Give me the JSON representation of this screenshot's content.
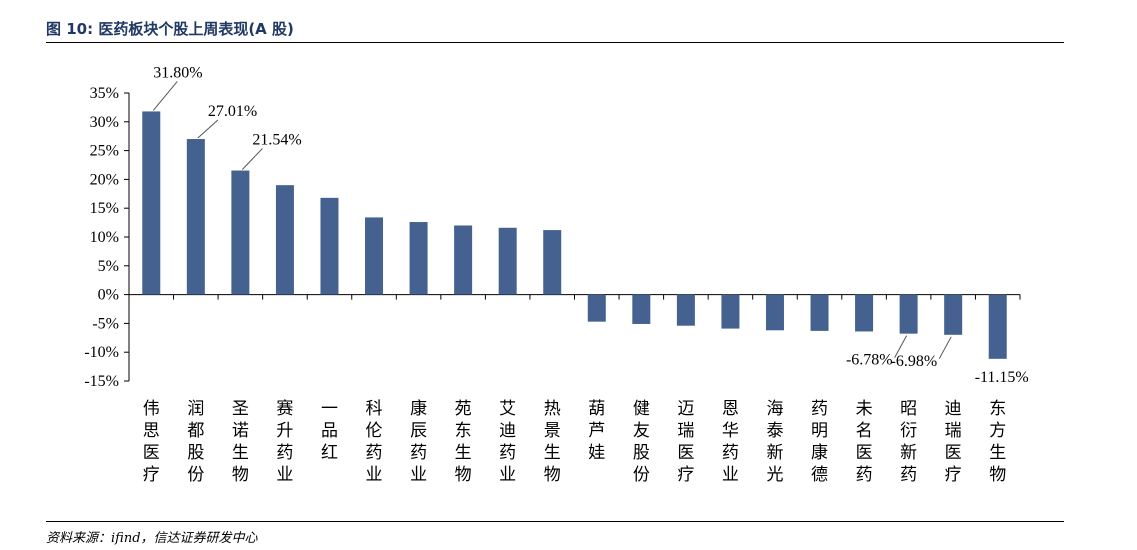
{
  "figure": {
    "title": "图 10: 医药板块个股上周表现(A 股)",
    "source": "资料来源：ifind，信达证券研发中心"
  },
  "chart_data": {
    "type": "bar",
    "title": "",
    "xlabel": "",
    "ylabel": "",
    "ylim": [
      -15,
      35
    ],
    "y_ticks": [
      35,
      30,
      25,
      20,
      15,
      10,
      5,
      0,
      -5,
      -10,
      -15
    ],
    "y_tick_labels": [
      "35%",
      "30%",
      "25%",
      "20%",
      "15%",
      "10%",
      "5%",
      "0%",
      "-5%",
      "-10%",
      "-15%"
    ],
    "categories": [
      "伟思医疗",
      "润都股份",
      "圣诺生物",
      "赛升药业",
      "一品红",
      "科伦药业",
      "康辰药业",
      "苑东生物",
      "艾迪药业",
      "热景生物",
      "葫芦娃",
      "健友股份",
      "迈瑞医疗",
      "恩华药业",
      "海泰新光",
      "药明康德",
      "未名医药",
      "昭衍新药",
      "迪瑞医疗",
      "东方生物"
    ],
    "values": [
      31.8,
      27.01,
      21.54,
      19.0,
      16.8,
      13.4,
      12.6,
      12.0,
      11.6,
      11.2,
      -4.7,
      -5.1,
      -5.4,
      -5.9,
      -6.2,
      -6.3,
      -6.4,
      -6.78,
      -6.98,
      -11.15
    ],
    "data_labels": [
      {
        "index": 0,
        "text": "31.80%"
      },
      {
        "index": 1,
        "text": "27.01%"
      },
      {
        "index": 2,
        "text": "21.54%"
      },
      {
        "index": 17,
        "text": "-6.78%"
      },
      {
        "index": 18,
        "text": "-6.98%"
      },
      {
        "index": 19,
        "text": "-11.15%"
      }
    ],
    "bar_color": "#44618f",
    "grid": false,
    "legend": "none"
  }
}
